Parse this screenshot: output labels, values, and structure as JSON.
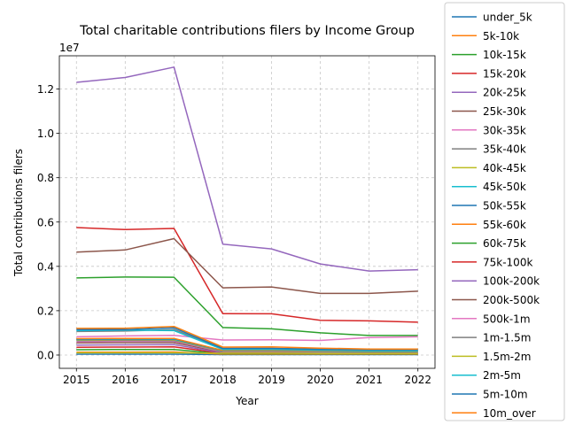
{
  "chart_data": {
    "type": "line",
    "title": "Total charitable contributions filers by Income Group",
    "xlabel": "Year",
    "ylabel": "Total contributions filers",
    "offset_label": "1e7",
    "x": [
      2015,
      2016,
      2017,
      2018,
      2019,
      2020,
      2021,
      2022
    ],
    "xlim": [
      2014.65,
      2022.35
    ],
    "ylim": [
      -600000,
      13500000
    ],
    "yticks": [
      0,
      2000000,
      4000000,
      6000000,
      8000000,
      10000000,
      12000000
    ],
    "ytick_labels": [
      "0.0",
      "0.2",
      "0.4",
      "0.6",
      "0.8",
      "1.0",
      "1.2"
    ],
    "grid": true,
    "legend_position": "right, outside plot",
    "series": [
      {
        "name": "under_5k",
        "color": "#1f77b4",
        "values": [
          40000,
          40000,
          40000,
          20000,
          20000,
          20000,
          20000,
          20000
        ]
      },
      {
        "name": "5k-10k",
        "color": "#ff7f0e",
        "values": [
          130000,
          130000,
          140000,
          40000,
          40000,
          40000,
          40000,
          40000
        ]
      },
      {
        "name": "10k-15k",
        "color": "#2ca02c",
        "values": [
          240000,
          250000,
          250000,
          60000,
          60000,
          60000,
          60000,
          60000
        ]
      },
      {
        "name": "15k-20k",
        "color": "#d62728",
        "values": [
          350000,
          360000,
          370000,
          80000,
          80000,
          80000,
          80000,
          80000
        ]
      },
      {
        "name": "20k-25k",
        "color": "#9467bd",
        "values": [
          450000,
          460000,
          470000,
          100000,
          100000,
          100000,
          100000,
          100000
        ]
      },
      {
        "name": "25k-30k",
        "color": "#8c564b",
        "values": [
          550000,
          560000,
          560000,
          130000,
          130000,
          120000,
          120000,
          120000
        ]
      },
      {
        "name": "30k-35k",
        "color": "#e377c2",
        "values": [
          600000,
          620000,
          620000,
          150000,
          150000,
          140000,
          140000,
          140000
        ]
      },
      {
        "name": "35k-40k",
        "color": "#7f7f7f",
        "values": [
          650000,
          660000,
          650000,
          170000,
          170000,
          160000,
          150000,
          150000
        ]
      },
      {
        "name": "40k-45k",
        "color": "#bcbd22",
        "values": [
          680000,
          700000,
          690000,
          180000,
          180000,
          170000,
          160000,
          160000
        ]
      },
      {
        "name": "45k-50k",
        "color": "#17becf",
        "values": [
          700000,
          720000,
          710000,
          190000,
          190000,
          180000,
          170000,
          170000
        ]
      },
      {
        "name": "50k-55k",
        "color": "#1f77b4",
        "values": [
          720000,
          730000,
          730000,
          200000,
          200000,
          190000,
          180000,
          180000
        ]
      },
      {
        "name": "55k-60k",
        "color": "#ff7f0e",
        "values": [
          740000,
          750000,
          750000,
          210000,
          210000,
          200000,
          190000,
          190000
        ]
      },
      {
        "name": "60k-75k",
        "color": "#2ca02c",
        "values": [
          3480000,
          3520000,
          3510000,
          1240000,
          1180000,
          1000000,
          880000,
          880000
        ]
      },
      {
        "name": "75k-100k",
        "color": "#d62728",
        "values": [
          5750000,
          5660000,
          5710000,
          1870000,
          1860000,
          1570000,
          1540000,
          1480000
        ]
      },
      {
        "name": "100k-200k",
        "color": "#9467bd",
        "values": [
          12300000,
          12520000,
          12990000,
          5000000,
          4790000,
          4110000,
          3790000,
          3850000
        ]
      },
      {
        "name": "200k-500k",
        "color": "#8c564b",
        "values": [
          4640000,
          4740000,
          5250000,
          3030000,
          3070000,
          2780000,
          2780000,
          2880000
        ]
      },
      {
        "name": "500k-1m",
        "color": "#e377c2",
        "values": [
          820000,
          860000,
          890000,
          680000,
          690000,
          660000,
          790000,
          820000
        ]
      },
      {
        "name": "1m-1.5m",
        "color": "#7f7f7f",
        "values": [
          1060000,
          1080000,
          1150000,
          300000,
          300000,
          270000,
          240000,
          240000
        ]
      },
      {
        "name": "1.5m-2m",
        "color": "#bcbd22",
        "values": [
          100000,
          100000,
          100000,
          80000,
          80000,
          70000,
          70000,
          70000
        ]
      },
      {
        "name": "2m-5m",
        "color": "#17becf",
        "values": [
          1100000,
          1120000,
          1100000,
          250000,
          250000,
          220000,
          200000,
          200000
        ]
      },
      {
        "name": "5m-10m",
        "color": "#1f77b4",
        "values": [
          1150000,
          1150000,
          1230000,
          300000,
          300000,
          260000,
          240000,
          240000
        ]
      },
      {
        "name": "10m_over",
        "color": "#ff7f0e",
        "values": [
          1200000,
          1210000,
          1290000,
          360000,
          370000,
          310000,
          270000,
          270000
        ]
      }
    ]
  }
}
